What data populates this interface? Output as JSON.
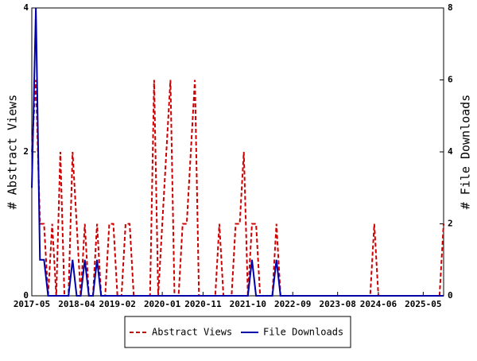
{
  "chart_data": {
    "type": "line",
    "categories": [
      "2017-05",
      null,
      null,
      null,
      null,
      null,
      null,
      null,
      null,
      null,
      null,
      "2018-04",
      null,
      null,
      null,
      null,
      null,
      null,
      null,
      null,
      null,
      "2019-02",
      null,
      null,
      null,
      null,
      null,
      null,
      null,
      null,
      null,
      null,
      "2020-01",
      null,
      null,
      null,
      null,
      null,
      null,
      null,
      null,
      null,
      "2020-11",
      null,
      null,
      null,
      null,
      null,
      null,
      null,
      null,
      null,
      null,
      "2021-10",
      null,
      null,
      null,
      null,
      null,
      null,
      null,
      null,
      null,
      null,
      "2022-09",
      null,
      null,
      null,
      null,
      null,
      null,
      null,
      null,
      null,
      null,
      "2023-08",
      null,
      null,
      null,
      null,
      null,
      null,
      null,
      null,
      null,
      "2024-06",
      null,
      null,
      null,
      null,
      null,
      null,
      null,
      null,
      null,
      null,
      "2025-05",
      null,
      null,
      null,
      null,
      null
    ],
    "ylabel": "# Abstract Views",
    "y2label": "# File Downloads",
    "ylim": [
      0,
      4
    ],
    "yticks": [
      0,
      2,
      4
    ],
    "y2lim": [
      0,
      8
    ],
    "y2ticks": [
      0,
      2,
      4,
      6,
      8
    ],
    "series": [
      {
        "name": "Abstract Views",
        "color": "#cc0000",
        "axis": "y",
        "dashed": true,
        "values": [
          2,
          3,
          1,
          1,
          0,
          1,
          0,
          2,
          0,
          0,
          2,
          1,
          0,
          1,
          0,
          0,
          1,
          0,
          0,
          1,
          1,
          0,
          0,
          1,
          1,
          0,
          0,
          0,
          0,
          0,
          3,
          0,
          1,
          2,
          3,
          0,
          0,
          1,
          1,
          2,
          3,
          0,
          0,
          0,
          0,
          0,
          1,
          0,
          0,
          0,
          1,
          1,
          2,
          0,
          1,
          1,
          0,
          0,
          0,
          0,
          1,
          0,
          0,
          0,
          0,
          0,
          0,
          0,
          0,
          0,
          0,
          0,
          0,
          0,
          0,
          0,
          0,
          0,
          0,
          0,
          0,
          0,
          0,
          0,
          1,
          0,
          0,
          0,
          0,
          0,
          0,
          0,
          0,
          0,
          0,
          0,
          0,
          0,
          0,
          0,
          0,
          1
        ]
      },
      {
        "name": "File Downloads",
        "color": "#0000aa",
        "axis": "y2",
        "dashed": false,
        "values": [
          3,
          8,
          1,
          1,
          0,
          0,
          0,
          0,
          0,
          0,
          1,
          0,
          0,
          1,
          0,
          0,
          1,
          0,
          0,
          0,
          0,
          0,
          0,
          0,
          0,
          0,
          0,
          0,
          0,
          0,
          0,
          0,
          0,
          0,
          0,
          0,
          0,
          0,
          0,
          0,
          0,
          0,
          0,
          0,
          0,
          0,
          0,
          0,
          0,
          0,
          0,
          0,
          0,
          0,
          1,
          0,
          0,
          0,
          0,
          0,
          1,
          0,
          0,
          0,
          0,
          0,
          0,
          0,
          0,
          0,
          0,
          0,
          0,
          0,
          0,
          0,
          0,
          0,
          0,
          0,
          0,
          0,
          0,
          0,
          0,
          0,
          0,
          0,
          0,
          0,
          0,
          0,
          0,
          0,
          0,
          0,
          0,
          0,
          0,
          0,
          0,
          0
        ]
      }
    ]
  }
}
